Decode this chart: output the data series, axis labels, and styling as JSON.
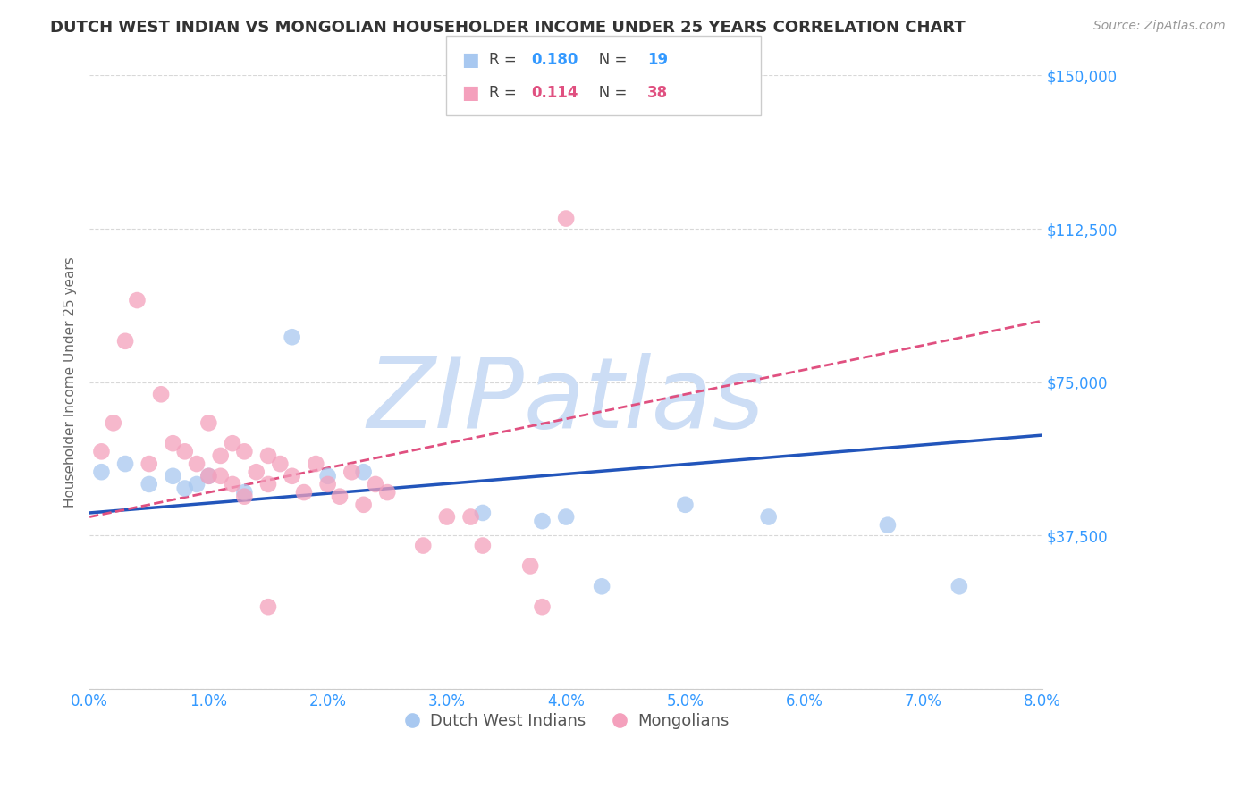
{
  "title": "DUTCH WEST INDIAN VS MONGOLIAN HOUSEHOLDER INCOME UNDER 25 YEARS CORRELATION CHART",
  "source": "Source: ZipAtlas.com",
  "ylabel": "Householder Income Under 25 years",
  "xlim": [
    0.0,
    0.08
  ],
  "ylim": [
    0,
    150000
  ],
  "yticks": [
    0,
    37500,
    75000,
    112500,
    150000
  ],
  "xticks": [
    0.0,
    0.01,
    0.02,
    0.03,
    0.04,
    0.05,
    0.06,
    0.07,
    0.08
  ],
  "background_color": "#ffffff",
  "grid_color": "#d8d8d8",
  "dutch_color": "#a8c8f0",
  "dutch_line_color": "#2255bb",
  "mongolian_color": "#f4a0bc",
  "mongolian_line_color": "#e05080",
  "dutch_R": 0.18,
  "dutch_N": 19,
  "mongolian_R": 0.114,
  "mongolian_N": 38,
  "dutch_points_x": [
    0.001,
    0.003,
    0.005,
    0.007,
    0.008,
    0.009,
    0.01,
    0.013,
    0.017,
    0.02,
    0.023,
    0.033,
    0.038,
    0.04,
    0.043,
    0.05,
    0.057,
    0.067,
    0.073
  ],
  "dutch_points_y": [
    53000,
    55000,
    50000,
    52000,
    49000,
    50000,
    52000,
    48000,
    86000,
    52000,
    53000,
    43000,
    41000,
    42000,
    25000,
    45000,
    42000,
    40000,
    25000
  ],
  "mongolian_points_x": [
    0.001,
    0.002,
    0.003,
    0.004,
    0.005,
    0.006,
    0.007,
    0.008,
    0.009,
    0.01,
    0.01,
    0.011,
    0.011,
    0.012,
    0.012,
    0.013,
    0.013,
    0.014,
    0.015,
    0.015,
    0.016,
    0.017,
    0.018,
    0.019,
    0.02,
    0.021,
    0.022,
    0.023,
    0.024,
    0.025,
    0.028,
    0.03,
    0.032,
    0.033,
    0.037,
    0.038,
    0.04,
    0.015
  ],
  "mongolian_points_y": [
    58000,
    65000,
    85000,
    95000,
    55000,
    72000,
    60000,
    58000,
    55000,
    52000,
    65000,
    57000,
    52000,
    60000,
    50000,
    58000,
    47000,
    53000,
    57000,
    50000,
    55000,
    52000,
    48000,
    55000,
    50000,
    47000,
    53000,
    45000,
    50000,
    48000,
    35000,
    42000,
    42000,
    35000,
    30000,
    20000,
    115000,
    20000
  ],
  "watermark": "ZIPatlas",
  "watermark_color": "#ccddf5",
  "watermark_fontsize": 80,
  "title_fontsize": 13,
  "axis_label_color": "#3399ff",
  "axis_tick_color": "#3399ff",
  "ylabel_color": "#666666",
  "ylabel_fontsize": 11
}
